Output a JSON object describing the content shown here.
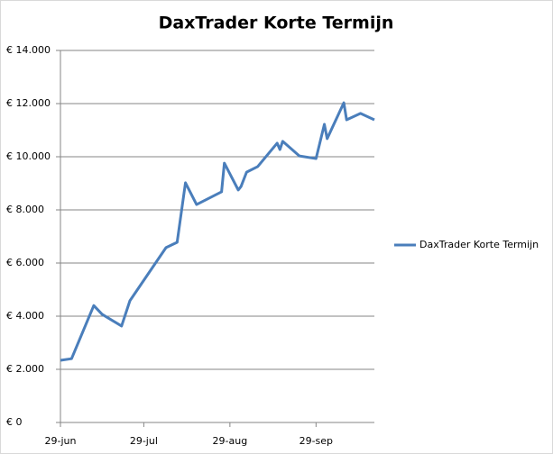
{
  "chart_data": {
    "type": "line",
    "title": "DaxTrader Korte Termijn",
    "x": [
      "29-jun",
      "3-jul",
      "11-jul",
      "14-jul",
      "21-jul",
      "24-jul",
      "6-aug",
      "10-aug",
      "13-aug",
      "17-aug",
      "26-aug",
      "27-aug",
      "1-sep",
      "2-sep",
      "4-sep",
      "8-sep",
      "15-sep",
      "16-sep",
      "17-sep",
      "23-sep",
      "29-sep",
      "2-oct",
      "3-oct",
      "9-oct",
      "10-oct",
      "15-oct",
      "20-oct"
    ],
    "series": [
      {
        "name": "DaxTrader Korte Termijn",
        "color": "#4a7ebb",
        "values": [
          2340,
          2400,
          4400,
          4070,
          3630,
          4580,
          6580,
          6780,
          9020,
          8200,
          8680,
          9760,
          8750,
          8880,
          9420,
          9630,
          10510,
          10270,
          10580,
          10030,
          9930,
          11220,
          10680,
          12030,
          11390,
          11630,
          11390
        ]
      }
    ],
    "xlim": [
      "29-jun",
      "20-oct"
    ],
    "xticks": [
      "29-jun",
      "29-jul",
      "29-aug",
      "29-sep"
    ],
    "ylim": [
      0,
      14000
    ],
    "yticks": [
      {
        "value": 0,
        "label": "€ 0"
      },
      {
        "value": 2000,
        "label": "€ 2.000"
      },
      {
        "value": 4000,
        "label": "€ 4.000"
      },
      {
        "value": 6000,
        "label": "€ 6.000"
      },
      {
        "value": 8000,
        "label": "€ 8.000"
      },
      {
        "value": 10000,
        "label": "€ 10.000"
      },
      {
        "value": 12000,
        "label": "€ 12.000"
      },
      {
        "value": 14000,
        "label": "€ 14.000"
      }
    ],
    "grid": true,
    "legend": "right"
  }
}
